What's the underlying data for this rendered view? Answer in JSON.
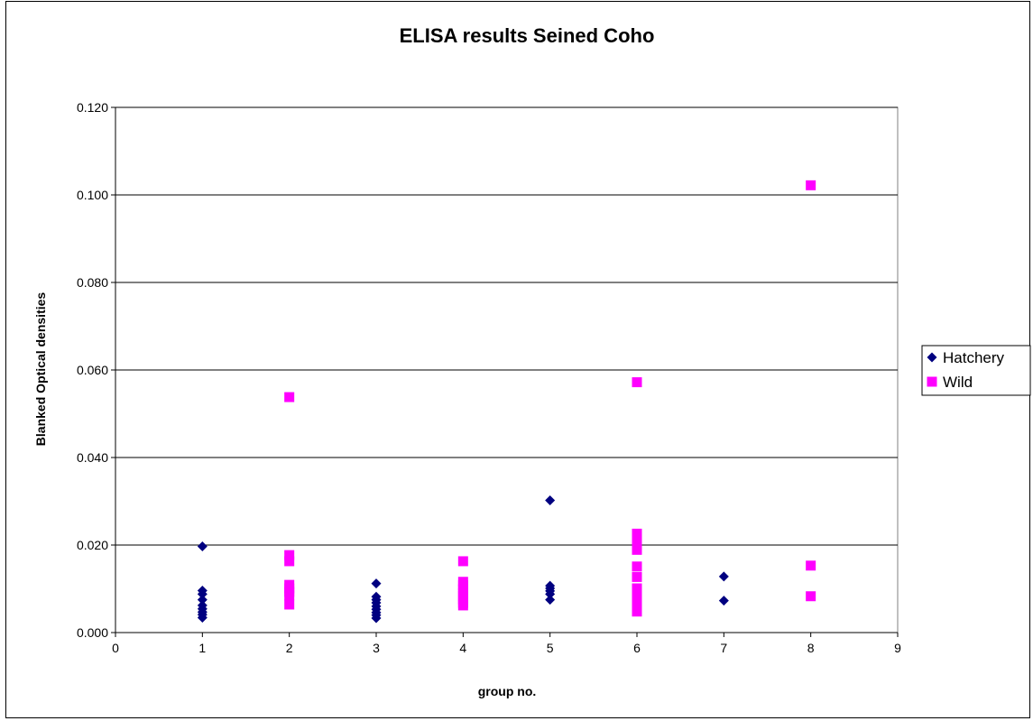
{
  "chart_data": {
    "type": "scatter",
    "title": "ELISA results Seined Coho",
    "xlabel": "group no.",
    "ylabel": "Blanked Optical densities",
    "xlim": [
      0,
      9
    ],
    "ylim": [
      0,
      0.12
    ],
    "x_ticks": [
      "0",
      "1",
      "2",
      "3",
      "4",
      "5",
      "6",
      "7",
      "8",
      "9"
    ],
    "y_ticks": [
      "0.000",
      "0.020",
      "0.040",
      "0.060",
      "0.080",
      "0.100",
      "0.120"
    ],
    "grid": "horizontal major gridlines",
    "legend_position": "right",
    "series": [
      {
        "name": "Hatchery",
        "color": "#000080",
        "marker": "diamond",
        "points": [
          [
            1,
            0.0197
          ],
          [
            1,
            0.0096
          ],
          [
            1,
            0.0088
          ],
          [
            1,
            0.0075
          ],
          [
            1,
            0.0062
          ],
          [
            1,
            0.0054
          ],
          [
            1,
            0.0047
          ],
          [
            1,
            0.0041
          ],
          [
            1,
            0.0034
          ],
          [
            3,
            0.0112
          ],
          [
            3,
            0.0082
          ],
          [
            3,
            0.0075
          ],
          [
            3,
            0.0068
          ],
          [
            3,
            0.006
          ],
          [
            3,
            0.0053
          ],
          [
            3,
            0.0046
          ],
          [
            3,
            0.004
          ],
          [
            3,
            0.0033
          ],
          [
            5,
            0.0302
          ],
          [
            5,
            0.0107
          ],
          [
            5,
            0.0101
          ],
          [
            5,
            0.0095
          ],
          [
            5,
            0.0088
          ],
          [
            5,
            0.0075
          ],
          [
            7,
            0.0128
          ],
          [
            7,
            0.0073
          ]
        ]
      },
      {
        "name": "Wild",
        "color": "#FF00FF",
        "marker": "square",
        "points": [
          [
            2,
            0.0538
          ],
          [
            2,
            0.0177
          ],
          [
            2,
            0.0163
          ],
          [
            2,
            0.0109
          ],
          [
            2,
            0.0101
          ],
          [
            2,
            0.0093
          ],
          [
            2,
            0.0085
          ],
          [
            2,
            0.0064
          ],
          [
            4,
            0.0163
          ],
          [
            4,
            0.0116
          ],
          [
            4,
            0.0108
          ],
          [
            4,
            0.0099
          ],
          [
            4,
            0.0091
          ],
          [
            4,
            0.0084
          ],
          [
            4,
            0.0076
          ],
          [
            4,
            0.0068
          ],
          [
            4,
            0.0062
          ],
          [
            6,
            0.0572
          ],
          [
            6,
            0.0226
          ],
          [
            6,
            0.0214
          ],
          [
            6,
            0.0201
          ],
          [
            6,
            0.0189
          ],
          [
            6,
            0.0151
          ],
          [
            6,
            0.0127
          ],
          [
            6,
            0.0101
          ],
          [
            6,
            0.0088
          ],
          [
            6,
            0.007
          ],
          [
            6,
            0.0057
          ],
          [
            6,
            0.0048
          ],
          [
            8,
            0.1022
          ],
          [
            8,
            0.0153
          ],
          [
            8,
            0.0083
          ]
        ]
      }
    ]
  }
}
